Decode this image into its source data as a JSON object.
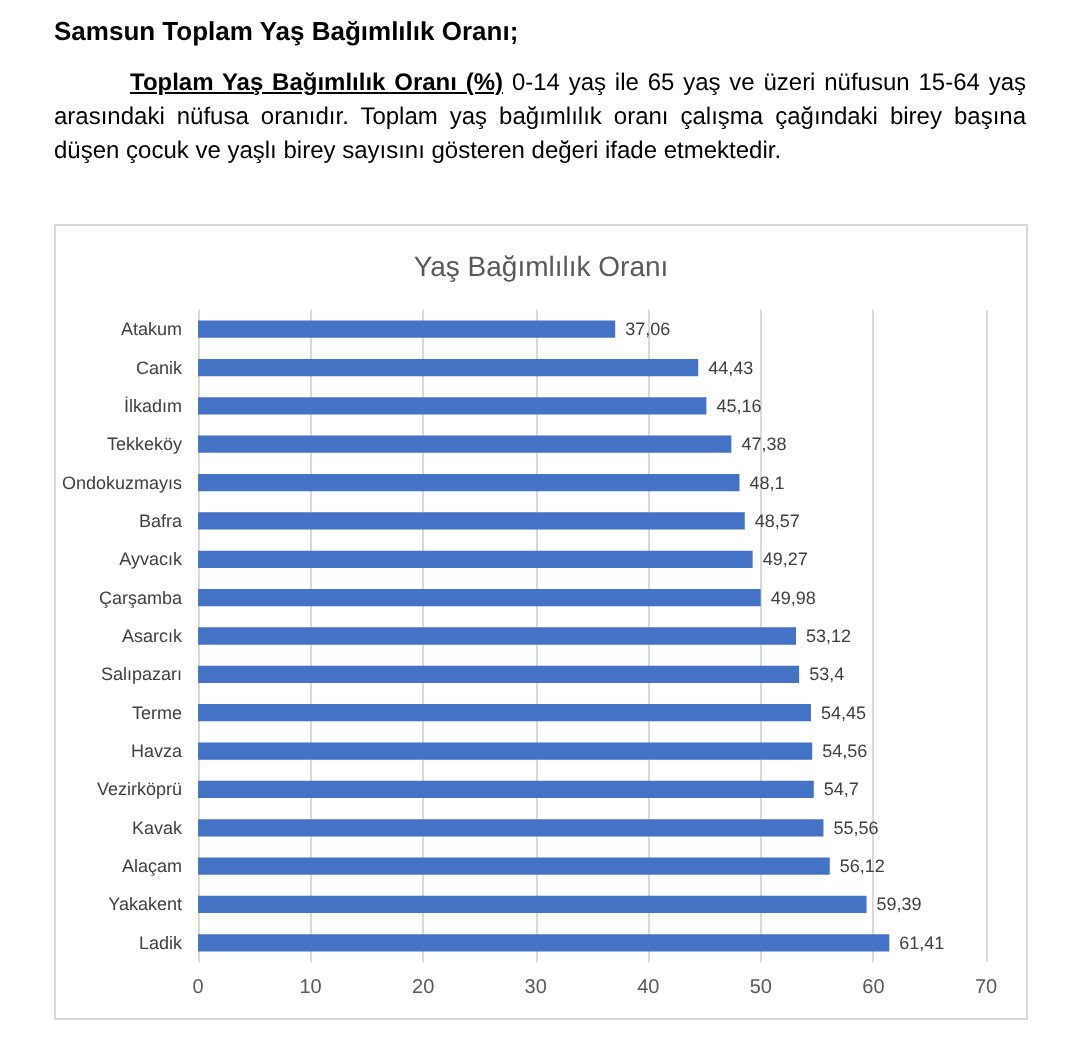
{
  "chart_data": {
    "type": "bar",
    "orientation": "horizontal",
    "title": "Yaş Bağımlılık Oranı",
    "annotations": [
      "Samsun Toplam Yaş Bağımlılık Oranı;",
      "Toplam Yaş Bağımlılık Oranı (%)",
      "0-14 yaş ile 65 yaş ve üzeri nüfusun 15-64 yaş arasındaki nüfusa oranıdır. Toplam yaş bağımlılık oranı çalışma çağındaki birey başına düşen çocuk ve yaşlı birey sayısını gösteren değeri ifade etmektedir."
    ],
    "categories": [
      "Atakum",
      "Canik",
      "İlkadım",
      "Tekkeköy",
      "Ondokuzmayıs",
      "Bafra",
      "Ayvacık",
      "Çarşamba",
      "Asarcık",
      "Salıpazarı",
      "Terme",
      "Havza",
      "Vezirköprü",
      "Kavak",
      "Alaçam",
      "Yakakent",
      "Ladik"
    ],
    "values": [
      37.06,
      44.43,
      45.16,
      47.38,
      48.1,
      48.57,
      49.27,
      49.98,
      53.12,
      53.4,
      54.45,
      54.56,
      54.7,
      55.56,
      56.12,
      59.39,
      61.41
    ],
    "value_labels": [
      "37,06",
      "44,43",
      "45,16",
      "47,38",
      "48,1",
      "48,57",
      "49,27",
      "49,98",
      "53,12",
      "53,4",
      "54,45",
      "54,56",
      "54,7",
      "55,56",
      "56,12",
      "59,39",
      "61,41"
    ],
    "color": "#4472c4",
    "xlim": [
      0,
      70
    ],
    "xticks": [
      0,
      10,
      20,
      30,
      40,
      50,
      60,
      70
    ],
    "grid": "x"
  }
}
